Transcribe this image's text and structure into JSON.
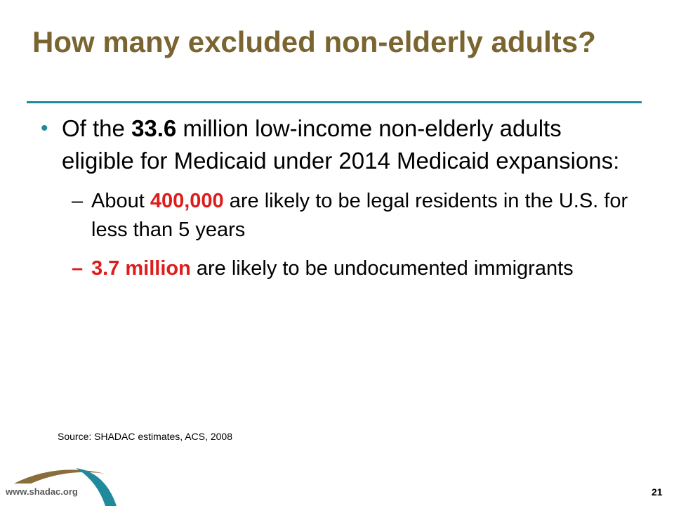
{
  "slide": {
    "title": "How many excluded non-elderly adults?",
    "bullet": {
      "prefix": "Of the ",
      "highlight": "33.6",
      "suffix": " million low-income non-elderly adults eligible for Medicaid under 2014 Medicaid expansions:"
    },
    "sub_bullets": [
      {
        "marker": "–",
        "prefix": "About ",
        "highlight": "400,000",
        "suffix": " are likely to be legal residents in the U.S. for less than 5 years"
      },
      {
        "marker": "–",
        "prefix": "",
        "highlight": "3.7 million",
        "suffix": " are likely to be undocumented immigrants"
      }
    ],
    "source": "Source: SHADAC estimates, ACS, 2008"
  },
  "footer": {
    "url": "www.shadac.org",
    "page_number": "21"
  },
  "colors": {
    "title": "#7a6530",
    "accent": "#1f8a9c",
    "highlight": "#dd1c1c",
    "logo_brown": "#8a6d3b"
  }
}
